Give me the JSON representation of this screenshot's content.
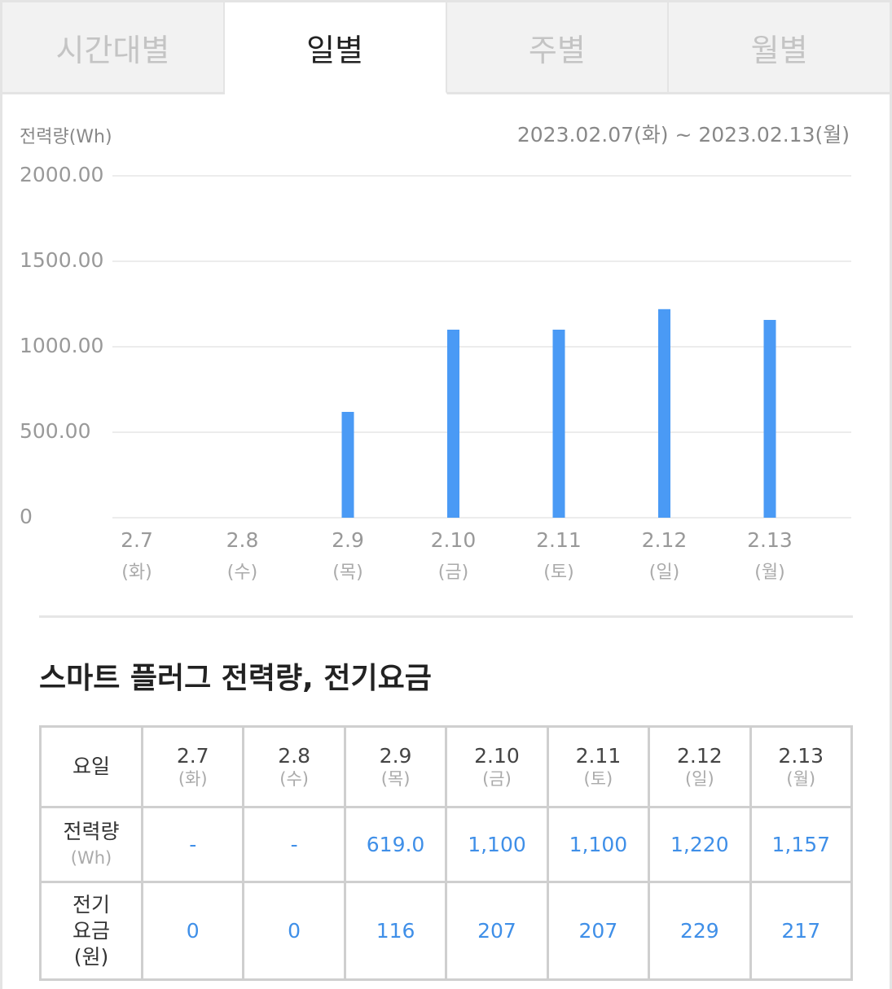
{
  "tabs": [
    {
      "label": "시간대별",
      "active": false
    },
    {
      "label": "일별",
      "active": true
    },
    {
      "label": "주별",
      "active": false
    },
    {
      "label": "월별",
      "active": false
    }
  ],
  "chart_header": {
    "ylabel": "전력량(Wh)",
    "range": "2023.02.07(화) ~ 2023.02.13(월)"
  },
  "chart_data": {
    "type": "bar",
    "categories": [
      "2.7",
      "2.8",
      "2.9",
      "2.10",
      "2.11",
      "2.12",
      "2.13"
    ],
    "category_sub": [
      "(화)",
      "(수)",
      "(목)",
      "(금)",
      "(토)",
      "(일)",
      "(월)"
    ],
    "values": [
      0,
      0,
      619.0,
      1100,
      1100,
      1220,
      1157
    ],
    "yticks": [
      "0",
      "500.00",
      "1000.00",
      "1500.00",
      "2000.00"
    ],
    "ylim": [
      0,
      2000
    ],
    "color": "#4a9af5",
    "grid": true
  },
  "section_title": "스마트 플러그 전력량, 전기요금",
  "table": {
    "row_day_label": "요일",
    "row_power_label": "전력량",
    "row_power_unit": "(Wh)",
    "row_fee_label_1": "전기",
    "row_fee_label_2": "요금",
    "row_fee_label_3": "(원)",
    "columns": [
      {
        "day": "2.7",
        "dow": "(화)",
        "power": "-",
        "fee": "0"
      },
      {
        "day": "2.8",
        "dow": "(수)",
        "power": "-",
        "fee": "0"
      },
      {
        "day": "2.9",
        "dow": "(목)",
        "power": "619.0",
        "fee": "116"
      },
      {
        "day": "2.10",
        "dow": "(금)",
        "power": "1,100",
        "fee": "207"
      },
      {
        "day": "2.11",
        "dow": "(토)",
        "power": "1,100",
        "fee": "207"
      },
      {
        "day": "2.12",
        "dow": "(일)",
        "power": "1,220",
        "fee": "229"
      },
      {
        "day": "2.13",
        "dow": "(월)",
        "power": "1,157",
        "fee": "217"
      }
    ]
  }
}
